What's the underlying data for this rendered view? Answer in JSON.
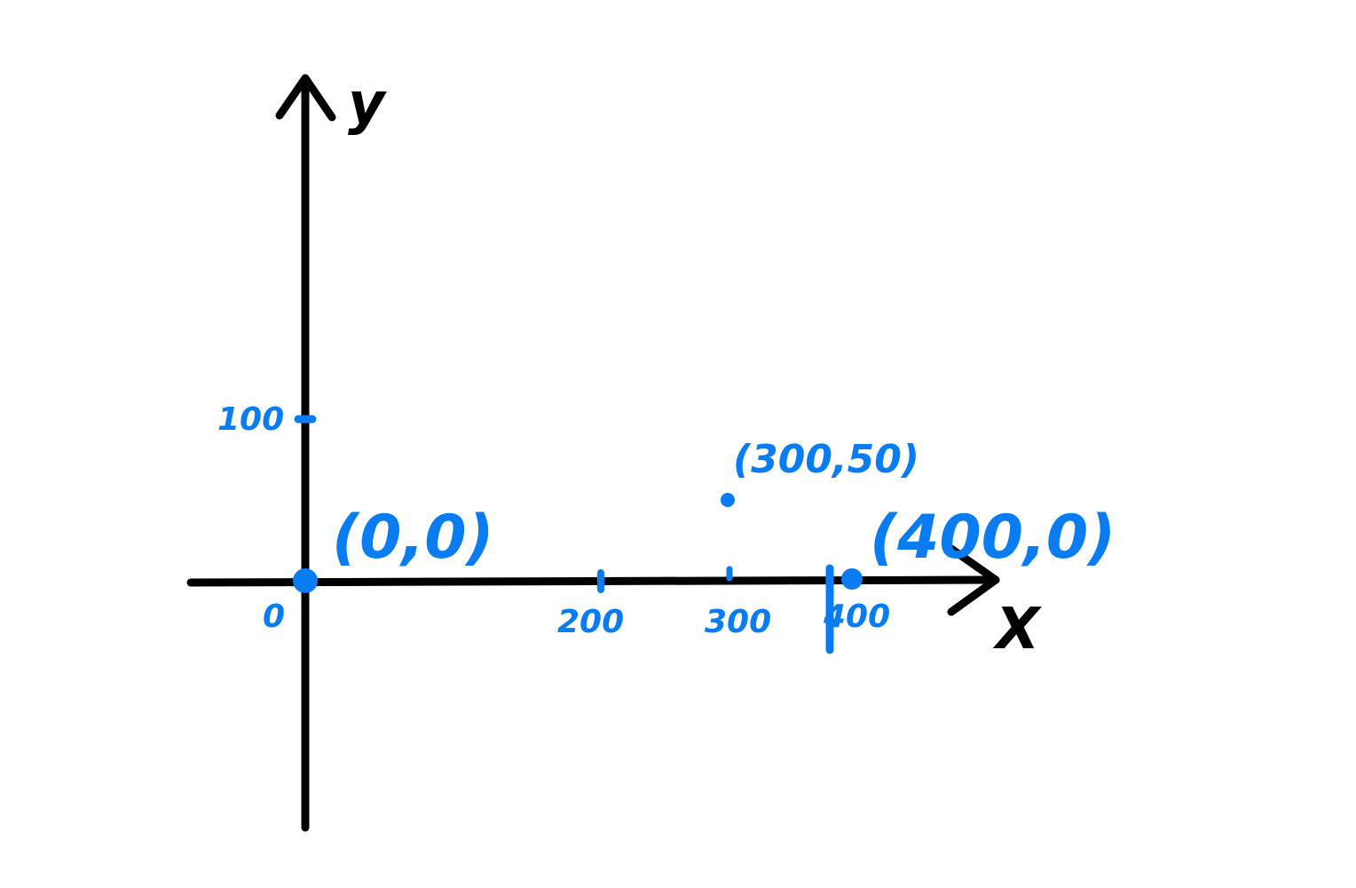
{
  "colors": {
    "ink": "#000000",
    "accent": "#0a7cf2",
    "background": "#ffffff"
  },
  "axes": {
    "x_label": "X",
    "y_label": "y"
  },
  "ticks": {
    "x": [
      {
        "value": 0,
        "label": "0"
      },
      {
        "value": 200,
        "label": "200"
      },
      {
        "value": 300,
        "label": "300"
      },
      {
        "value": 400,
        "label": "400"
      }
    ],
    "y": [
      {
        "value": 100,
        "label": "100"
      }
    ]
  },
  "points": [
    {
      "x": 0,
      "y": 0,
      "label": "(0,0)"
    },
    {
      "x": 300,
      "y": 50,
      "label": "(300,50)"
    },
    {
      "x": 400,
      "y": 0,
      "label": "(400,0)"
    }
  ]
}
